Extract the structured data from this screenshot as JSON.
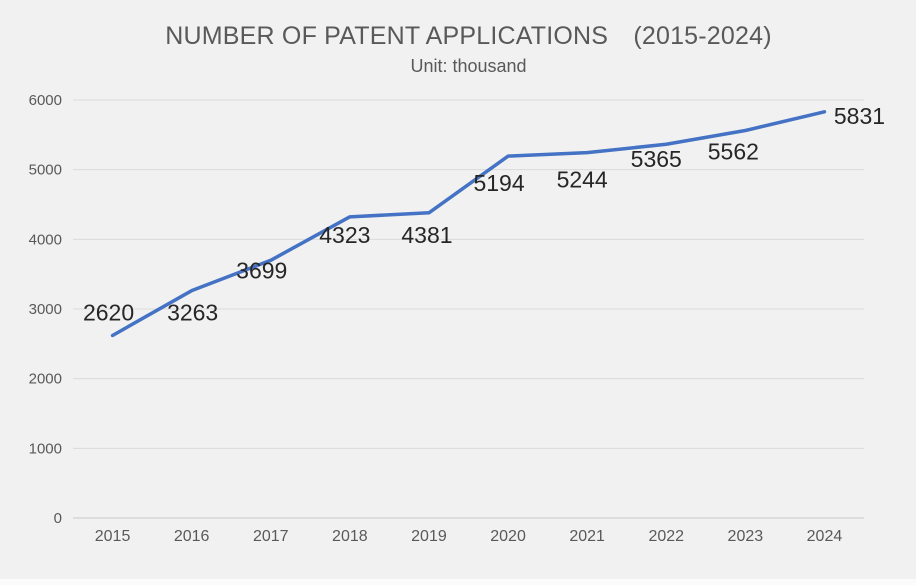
{
  "chart": {
    "title": "NUMBER OF PATENT APPLICATIONS　(2015-2024)",
    "subtitle": "Unit: thousand"
  },
  "chart_data": {
    "type": "line",
    "title": "NUMBER OF PATENT APPLICATIONS　(2015-2024)",
    "subtitle": "Unit: thousand",
    "categories": [
      "2015",
      "2016",
      "2017",
      "2018",
      "2019",
      "2020",
      "2021",
      "2022",
      "2023",
      "2024"
    ],
    "values": [
      2620,
      3263,
      3699,
      4323,
      4381,
      5194,
      5244,
      5365,
      5562,
      5831
    ],
    "data_labels": [
      "2620",
      "3263",
      "3699",
      "4323",
      "4381",
      "5194",
      "5244",
      "5365",
      "5562",
      "5831"
    ],
    "xlabel": "",
    "ylabel": "",
    "ylim": [
      0,
      6000
    ],
    "yticks": [
      0,
      1000,
      2000,
      3000,
      4000,
      5000,
      6000
    ],
    "grid": true,
    "legend": "none",
    "markers": false,
    "colors": {
      "line": "#4472C4",
      "background": "#F1F1F1",
      "gridline": "#DADADA",
      "axis_line": "#C9C9C9",
      "axis_text": "#595959",
      "title_text": "#595959",
      "data_label_text": "#262626"
    }
  }
}
